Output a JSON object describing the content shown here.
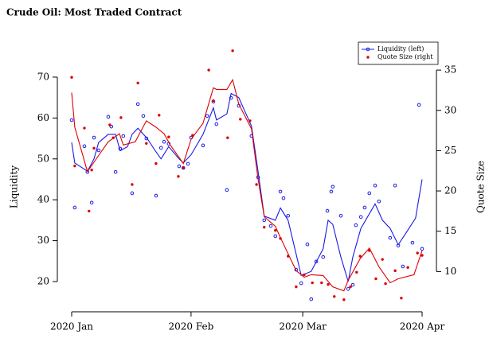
{
  "chart_data": {
    "type": "line",
    "title": "Crude Oil: Most Traded Contract",
    "ylabel": "Liquidity",
    "y2label": "Quote Size",
    "xlim": [
      0,
      91
    ],
    "xticks": [
      {
        "value": 0,
        "label": "2020 Jan"
      },
      {
        "value": 31,
        "label": "2020 Feb"
      },
      {
        "value": 60,
        "label": "2020 Mar"
      },
      {
        "value": 91,
        "label": "2020 Apr"
      }
    ],
    "ylim": [
      13,
      73.3
    ],
    "yticks": [
      20,
      30,
      40,
      50,
      60,
      70
    ],
    "y2lim": [
      5.2,
      35.8
    ],
    "y2ticks": [
      10,
      15,
      20,
      25,
      30,
      35
    ],
    "legend": "top-right",
    "series": [
      {
        "name": "Liquidity (left)",
        "color": "#1a1ae6",
        "axis": "y",
        "marker": "open",
        "x": [
          0,
          0.8,
          3.3,
          4.1,
          5.2,
          5.8,
          7,
          9.5,
          10.3,
          11.4,
          12.6,
          13.4,
          15.7,
          17.2,
          18.6,
          19.4,
          21.9,
          23.2,
          24,
          25.2,
          27.9,
          29,
          30.2,
          31,
          34.1,
          35.2,
          36.8,
          37.6,
          40.3,
          41.4,
          43.4,
          46.7,
          48.4,
          50,
          51.7,
          52.9,
          54.2,
          55,
          56.2,
          58.3,
          59.6,
          61.2,
          62.2,
          63.5,
          65.3,
          66.4,
          67.4,
          67.8,
          69.9,
          71.8,
          73,
          73.8,
          75.1,
          76.1,
          77.3,
          78.8,
          79.8,
          82.7,
          84,
          84.8,
          86,
          88.5,
          90.2,
          91
        ],
        "values": [
          59.5,
          38.1,
          53.1,
          46.8,
          39.3,
          55.2,
          52.1,
          60.3,
          57.9,
          46.8,
          52.5,
          55.6,
          41.6,
          63.4,
          60.5,
          55,
          41,
          52.7,
          54.2,
          53.7,
          48.2,
          47.8,
          48.8,
          55.2,
          53.3,
          60.5,
          64,
          58.5,
          42.4,
          64.9,
          63,
          55.6,
          45.5,
          35,
          33.6,
          31.1,
          42,
          40.4,
          36.1,
          22.9,
          19.6,
          29.1,
          15.7,
          24.9,
          26,
          37.3,
          42,
          43.2,
          36.1,
          18.2,
          19.2,
          33.8,
          35.8,
          38.1,
          41.6,
          43.5,
          39.6,
          30.7,
          43.5,
          28.8,
          23.7,
          29.5,
          63.2,
          28
        ],
        "trend_x": [
          0,
          0.8,
          4.1,
          5.8,
          7,
          9.5,
          11.4,
          12.6,
          14.5,
          15.7,
          17.2,
          19.6,
          21.7,
          23.2,
          25.2,
          27.9,
          29,
          31,
          34.1,
          36.8,
          37.6,
          40.3,
          41.4,
          43.4,
          46.7,
          48.4,
          50,
          52.9,
          54.2,
          56.2,
          59.6,
          62.2,
          65.3,
          66.6,
          67.8,
          69.9,
          71.8,
          73,
          75.1,
          78.8,
          80.7,
          82.7,
          84.8,
          86.9,
          89.3,
          91
        ],
        "trend": [
          54,
          49,
          47,
          50,
          54,
          56,
          56,
          52,
          53,
          56,
          57.5,
          55,
          52,
          50,
          53,
          50,
          49,
          51,
          56,
          62.5,
          59.5,
          61,
          66,
          65,
          58,
          47,
          36,
          35,
          38,
          35,
          21.5,
          22.5,
          28,
          35,
          34,
          26,
          20,
          26,
          33,
          39,
          35,
          33,
          29,
          32,
          35.5,
          45
        ]
      },
      {
        "name": "Quote Size (right",
        "color": "#dd0000",
        "axis": "y2",
        "marker": "filled",
        "x": [
          0,
          0.8,
          3.3,
          4.5,
          5.2,
          5.8,
          9.9,
          10.8,
          12.8,
          15.7,
          17.2,
          19.4,
          21.9,
          22.7,
          25.2,
          27.7,
          29,
          31.4,
          35.6,
          36.8,
          40.5,
          41.8,
          43.8,
          46.3,
          48,
          50,
          52.9,
          54.2,
          56.2,
          58.3,
          60.4,
          62.5,
          64.9,
          66.6,
          68.2,
          70.7,
          72.4,
          74,
          74.9,
          77.3,
          79,
          80.7,
          81.5,
          84,
          85.6,
          87.3,
          89.8,
          91
        ],
        "values": [
          34.1,
          23.1,
          27.8,
          17.5,
          22.6,
          25.3,
          28.2,
          26.6,
          29.1,
          20.8,
          33.4,
          25.9,
          23.4,
          29.4,
          26.7,
          21.8,
          22.9,
          26.9,
          35,
          31.2,
          26.6,
          37.4,
          28.9,
          28.7,
          20.8,
          15.5,
          15.1,
          14.1,
          11.9,
          8.1,
          9.6,
          8.6,
          8.6,
          8.4,
          6.9,
          6.5,
          8.1,
          9.9,
          11.9,
          12.6,
          9.1,
          11.5,
          8.5,
          10.1,
          6.7,
          10.5,
          12.3,
          12
        ],
        "trend_x": [
          0,
          0.8,
          4.1,
          7,
          9.5,
          12.4,
          13.4,
          16.5,
          19.4,
          21.9,
          24,
          25.6,
          29,
          31,
          34.1,
          36.8,
          37.6,
          40.3,
          41.8,
          43.4,
          46.7,
          48.4,
          50,
          52.9,
          54.2,
          58.3,
          60.4,
          62.2,
          65.3,
          67.8,
          70.7,
          71.8,
          74.9,
          77.3,
          79.8,
          82.7,
          84.8,
          88.9,
          91
        ],
        "trend": [
          32.2,
          27.9,
          22.4,
          24.4,
          26.1,
          27.1,
          25.7,
          26.1,
          28.7,
          27.9,
          27.1,
          25.7,
          23.4,
          26.4,
          28.4,
          32.8,
          32.6,
          32.6,
          33.8,
          30.8,
          27.7,
          21.5,
          16.8,
          15.6,
          14.2,
          10.1,
          9.3,
          9.6,
          9.5,
          8.1,
          7.6,
          8.9,
          11.6,
          12.9,
          10.6,
          8.6,
          9.1,
          9.6,
          12.6
        ]
      }
    ]
  }
}
